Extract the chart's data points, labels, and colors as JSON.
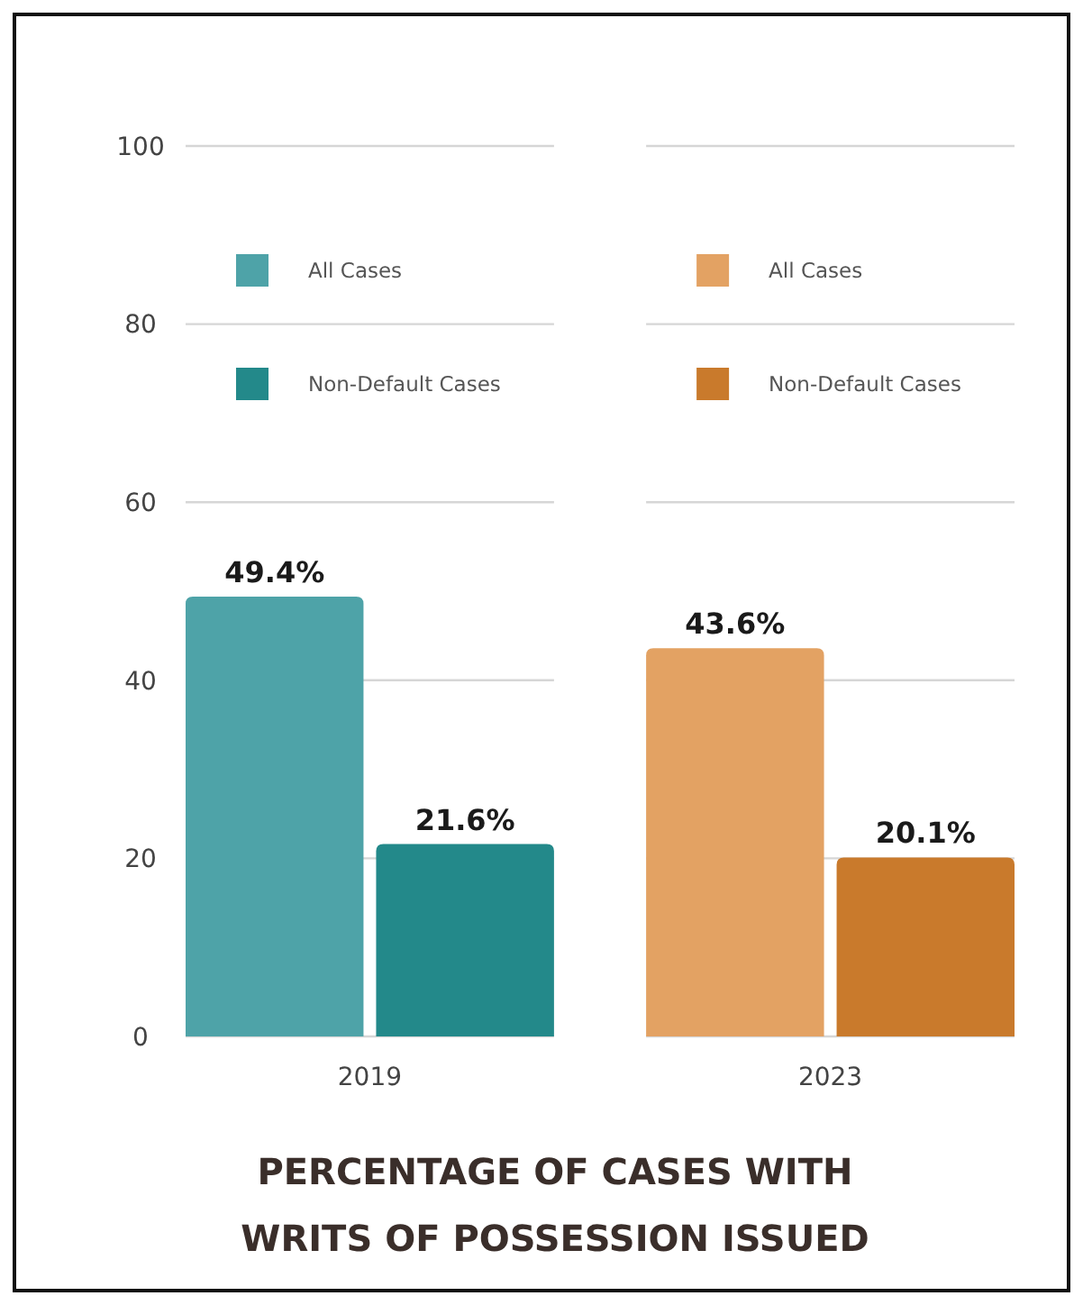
{
  "chart_data": {
    "type": "bar",
    "title": "PERCENTAGE OF CASES WITH WRITS OF POSSESSION ISSUED",
    "categories": [
      "2019",
      "2023"
    ],
    "series": [
      {
        "name": "All Cases",
        "color": "#4ea3a8",
        "values": [
          49.4,
          null
        ],
        "value_labels": [
          "49.4%",
          null
        ]
      },
      {
        "name": "Non-Default Cases",
        "color": "#23898a",
        "values": [
          21.6,
          null
        ],
        "value_labels": [
          "21.6%",
          null
        ]
      },
      {
        "name": "All Cases",
        "color": "#e3a263",
        "values": [
          null,
          43.6
        ],
        "value_labels": [
          null,
          "43.6%"
        ]
      },
      {
        "name": "Non-Default Cases",
        "color": "#c97a2c",
        "values": [
          null,
          20.1
        ],
        "value_labels": [
          null,
          "20.1%"
        ]
      }
    ],
    "ylim": [
      0,
      100
    ],
    "yticks": [
      0,
      20,
      40,
      60,
      80,
      100
    ],
    "grid": "y",
    "legend": "top"
  }
}
